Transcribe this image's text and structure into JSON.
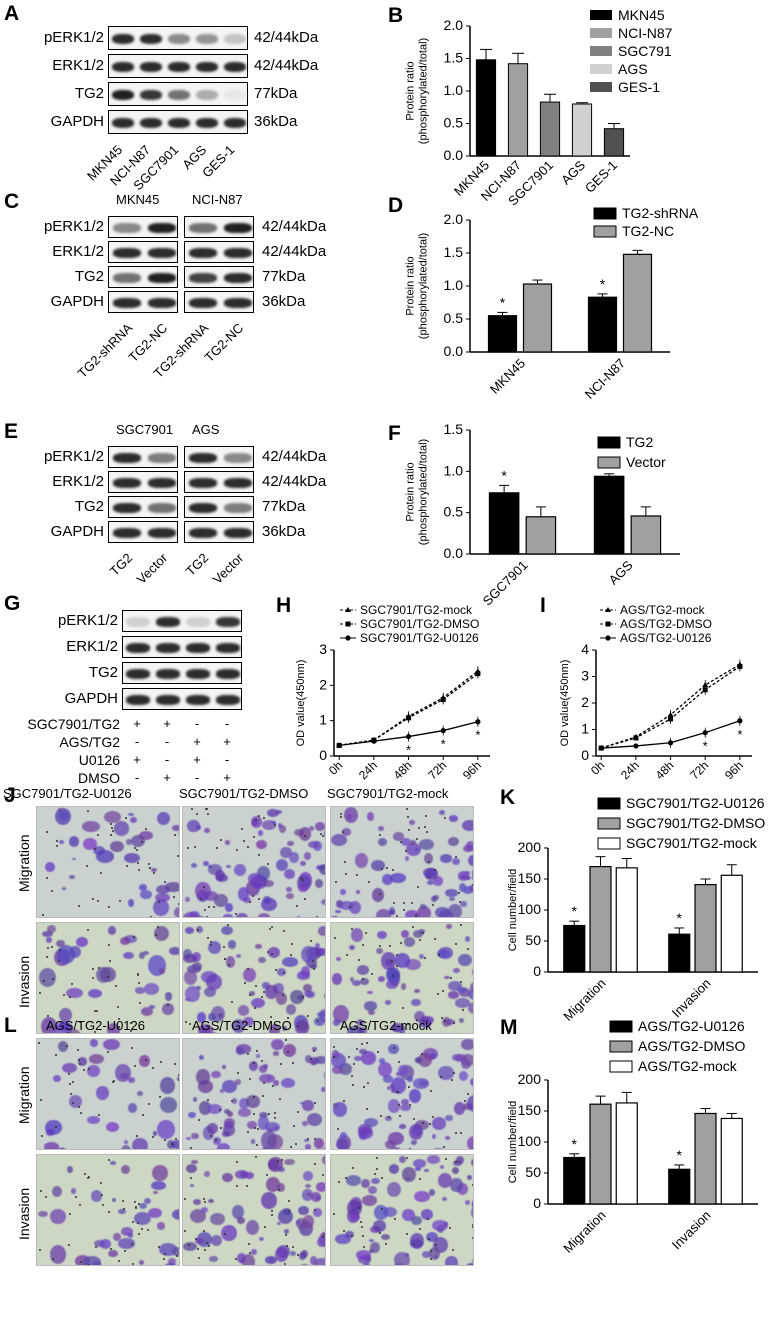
{
  "panels": {
    "A": {
      "letter": "A",
      "rows": [
        "pERK1/2",
        "ERK1/2",
        "TG2",
        "GAPDH"
      ],
      "sizes": [
        "42/44kDa",
        "42/44kDa",
        "77kDa",
        "36kDa"
      ],
      "lanes": [
        "MKN45",
        "NCI-N87",
        "SGC7901",
        "AGS",
        "GES-1"
      ]
    },
    "C": {
      "letter": "C",
      "groups": [
        "MKN45",
        "NCI-N87"
      ],
      "rows": [
        "pERK1/2",
        "ERK1/2",
        "TG2",
        "GAPDH"
      ],
      "sizes": [
        "42/44kDa",
        "42/44kDa",
        "77kDa",
        "36kDa"
      ],
      "lanes": [
        "TG2-shRNA",
        "TG2-NC",
        "TG2-shRNA",
        "TG2-NC"
      ]
    },
    "E": {
      "letter": "E",
      "groups": [
        "SGC7901",
        "AGS"
      ],
      "rows": [
        "pERK1/2",
        "ERK1/2",
        "TG2",
        "GAPDH"
      ],
      "sizes": [
        "42/44kDa",
        "42/44kDa",
        "77kDa",
        "36kDa"
      ],
      "lanes": [
        "TG2",
        "Vector",
        "TG2",
        "Vector"
      ]
    },
    "G": {
      "letter": "G",
      "rows": [
        "pERK1/2",
        "ERK1/2",
        "TG2",
        "GAPDH"
      ],
      "treatments": [
        {
          "name": "SGC7901/TG2",
          "marks": [
            "+",
            "+",
            "-",
            "-"
          ]
        },
        {
          "name": "AGS/TG2",
          "marks": [
            "-",
            "-",
            "+",
            "+"
          ]
        },
        {
          "name": "U0126",
          "marks": [
            "+",
            "-",
            "+",
            "-"
          ]
        },
        {
          "name": "DMSO",
          "marks": [
            "-",
            "+",
            "-",
            "+"
          ]
        }
      ]
    },
    "J": {
      "letter": "J",
      "cols": [
        "SGC7901/TG2-U0126",
        "SGC7901/TG2-DMSO",
        "SGC7901/TG2-mock"
      ],
      "rows": [
        "Migration",
        "Invasion"
      ]
    },
    "L": {
      "letter": "L",
      "cols": [
        "AGS/TG2-U0126",
        "AGS/TG2-DMSO",
        "AGS/TG2-mock"
      ],
      "rows": [
        "Migration",
        "Invasion"
      ]
    }
  },
  "chart_data": [
    {
      "id": "B",
      "letter": "B",
      "type": "bar",
      "categories": [
        "MKN45",
        "NCI-N87",
        "SGC7901",
        "AGS",
        "GES-1"
      ],
      "values": [
        1.48,
        1.42,
        0.83,
        0.8,
        0.42
      ],
      "errors": [
        0.16,
        0.16,
        0.12,
        0.02,
        0.08
      ],
      "colors": [
        "#000000",
        "#a0a0a0",
        "#808080",
        "#d0d0d0",
        "#505050"
      ],
      "legend": [
        "MKN45",
        "NCI-N87",
        "SGC791",
        "AGS",
        "GES-1"
      ],
      "ylabel": "Protein ratio\n(phosphorylated/total)",
      "ylim": [
        0,
        2.0
      ],
      "yticks": [
        "0.0",
        "0.5",
        "1.0",
        "1.5",
        "2.0"
      ]
    },
    {
      "id": "D",
      "letter": "D",
      "type": "bar",
      "categories": [
        "MKN45",
        "NCI-N87"
      ],
      "series": [
        {
          "name": "TG2-shRNA",
          "values": [
            0.55,
            0.83
          ],
          "errors": [
            0.05,
            0.05
          ],
          "color": "#000000"
        },
        {
          "name": "TG2-NC",
          "values": [
            1.03,
            1.48
          ],
          "errors": [
            0.06,
            0.06
          ],
          "color": "#a0a0a0"
        }
      ],
      "stars": [
        "*",
        "*"
      ],
      "ylabel": "Protein ratio\n(phosphorylated/total)",
      "ylim": [
        0,
        2.0
      ],
      "yticks": [
        "0.0",
        "0.5",
        "1.0",
        "1.5",
        "2.0"
      ]
    },
    {
      "id": "F",
      "letter": "F",
      "type": "bar",
      "categories": [
        "SGC7901",
        "AGS"
      ],
      "series": [
        {
          "name": "TG2",
          "values": [
            0.74,
            0.94
          ],
          "errors": [
            0.09,
            0.03
          ],
          "color": "#000000"
        },
        {
          "name": "Vector",
          "values": [
            0.45,
            0.46
          ],
          "errors": [
            0.12,
            0.11
          ],
          "color": "#a0a0a0"
        }
      ],
      "stars": [
        "*",
        "*"
      ],
      "ylabel": "Protein ratio\n(phosphorylated/total)",
      "ylim": [
        0,
        1.5
      ],
      "yticks": [
        "0.0",
        "0.5",
        "1.0",
        "1.5"
      ]
    },
    {
      "id": "H",
      "letter": "H",
      "type": "line",
      "x": [
        "0h",
        "24h",
        "48h",
        "72h",
        "96h"
      ],
      "series": [
        {
          "name": "SGC7901/TG2-mock",
          "values": [
            0.3,
            0.45,
            1.12,
            1.65,
            2.4
          ],
          "marker": "triangle",
          "dash": true
        },
        {
          "name": "SGC7901/TG2-DMSO",
          "values": [
            0.3,
            0.45,
            1.08,
            1.6,
            2.33
          ],
          "marker": "square",
          "dash": true
        },
        {
          "name": "SGC7901/TG2-U0126",
          "values": [
            0.3,
            0.42,
            0.55,
            0.72,
            0.97
          ],
          "marker": "circle",
          "dash": false
        }
      ],
      "stars": [
        "",
        "",
        "*",
        "*",
        "*"
      ],
      "ylabel": "OD value(450nm)",
      "ylim": [
        0,
        3
      ],
      "yticks": [
        "0",
        "1",
        "2",
        "3"
      ]
    },
    {
      "id": "I",
      "letter": "I",
      "type": "line",
      "x": [
        "0h",
        "24h",
        "48h",
        "72h",
        "96h"
      ],
      "series": [
        {
          "name": "AGS/TG2-mock",
          "values": [
            0.3,
            0.72,
            1.55,
            2.68,
            3.45
          ],
          "marker": "triangle",
          "dash": true
        },
        {
          "name": "AGS/TG2-DMSO",
          "values": [
            0.3,
            0.68,
            1.4,
            2.5,
            3.38
          ],
          "marker": "square",
          "dash": true
        },
        {
          "name": "AGS/TG2-U0126",
          "values": [
            0.3,
            0.38,
            0.5,
            0.88,
            1.33
          ],
          "marker": "circle",
          "dash": false
        }
      ],
      "stars": [
        "",
        "",
        "",
        "*",
        "*"
      ],
      "ylabel": "OD value(450nm)",
      "ylim": [
        0,
        4
      ],
      "yticks": [
        "0",
        "1",
        "2",
        "3",
        "4"
      ]
    },
    {
      "id": "K",
      "letter": "K",
      "type": "bar",
      "categories": [
        "Migration",
        "Invasion"
      ],
      "series": [
        {
          "name": "SGC7901/TG2-U0126",
          "values": [
            75,
            61
          ],
          "errors": [
            7,
            10
          ],
          "color": "#000000"
        },
        {
          "name": "SGC7901/TG2-DMSO",
          "values": [
            170,
            141
          ],
          "errors": [
            16,
            9
          ],
          "color": "#a0a0a0"
        },
        {
          "name": "SGC7901/TG2-mock",
          "values": [
            168,
            156
          ],
          "errors": [
            15,
            17
          ],
          "color": "#ffffff"
        }
      ],
      "stars": [
        "*",
        "*"
      ],
      "ylabel": "Cell number/field",
      "ylim": [
        0,
        200
      ],
      "yticks": [
        "0",
        "50",
        "100",
        "150",
        "200"
      ]
    },
    {
      "id": "M",
      "letter": "M",
      "type": "bar",
      "categories": [
        "Migration",
        "Invasion"
      ],
      "series": [
        {
          "name": "AGS/TG2-U0126",
          "values": [
            75,
            56
          ],
          "errors": [
            6,
            7
          ],
          "color": "#000000"
        },
        {
          "name": "AGS/TG2-DMSO",
          "values": [
            161,
            146
          ],
          "errors": [
            13,
            8
          ],
          "color": "#a0a0a0"
        },
        {
          "name": "AGS/TG2-mock",
          "values": [
            163,
            138
          ],
          "errors": [
            17,
            8
          ],
          "color": "#ffffff"
        }
      ],
      "stars": [
        "*",
        "*"
      ],
      "ylabel": "Cell number/field",
      "ylim": [
        0,
        200
      ],
      "yticks": [
        "0",
        "50",
        "100",
        "150",
        "200"
      ]
    }
  ]
}
